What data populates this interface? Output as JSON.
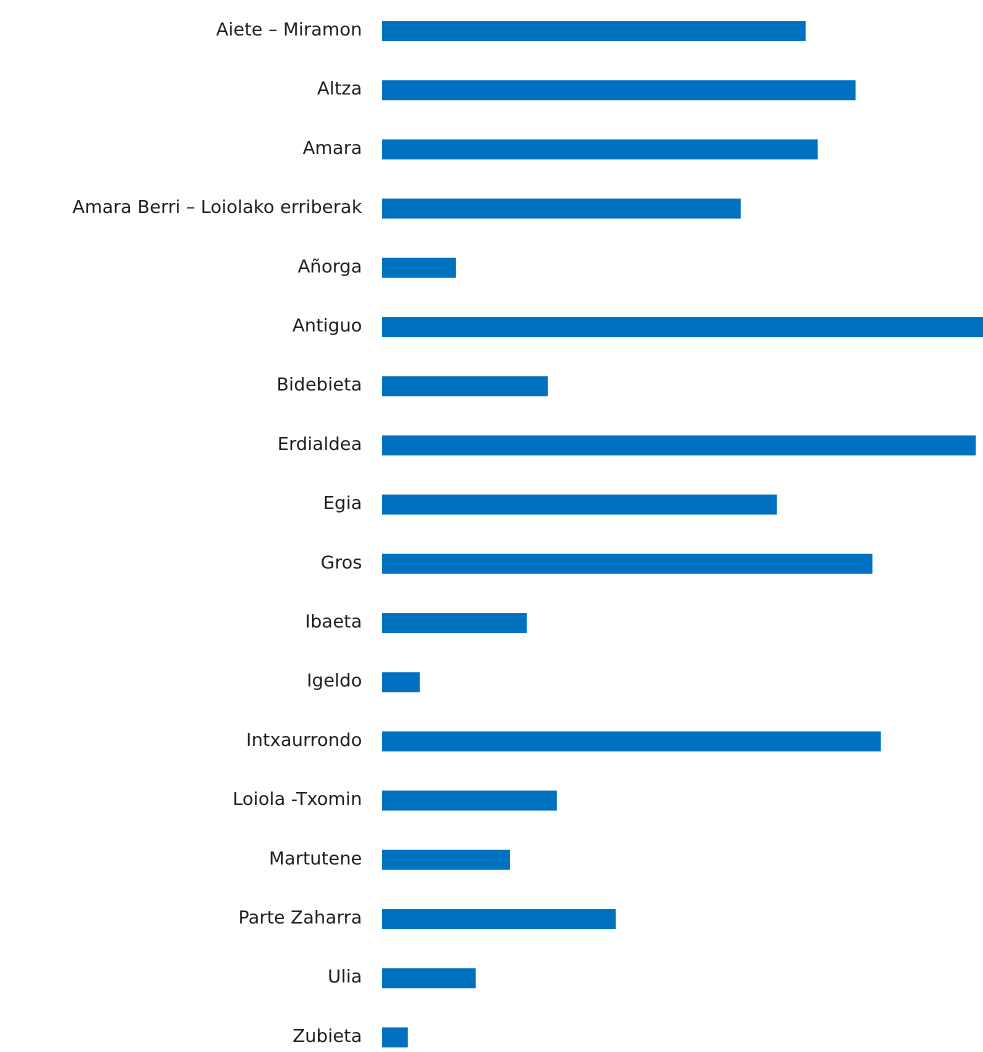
{
  "chart_data": {
    "type": "bar",
    "orientation": "horizontal",
    "bar_color": "#0070C0",
    "title": "",
    "xlabel": "",
    "ylabel": "",
    "grid": false,
    "legend": false,
    "xlim": [
      0,
      100
    ],
    "categories": [
      "Aiete – Miramon",
      "Altza",
      "Amara",
      "Amara Berri – Loiolako erriberak",
      "Añorga",
      "Antiguo",
      "Bidebieta",
      "Erdialdea",
      "Egia",
      "Gros",
      "Ibaeta",
      "Igeldo",
      "Intxaurrondo",
      "Loiola -Txomin",
      "Martutene",
      "Parte Zaharra",
      "Ulia",
      "Zubieta"
    ],
    "values": [
      70.5,
      78.8,
      72.5,
      59.7,
      12.3,
      100,
      27.6,
      98.8,
      65.7,
      81.6,
      24.1,
      6.3,
      83.0,
      29.1,
      21.3,
      38.9,
      15.6,
      4.3
    ]
  }
}
